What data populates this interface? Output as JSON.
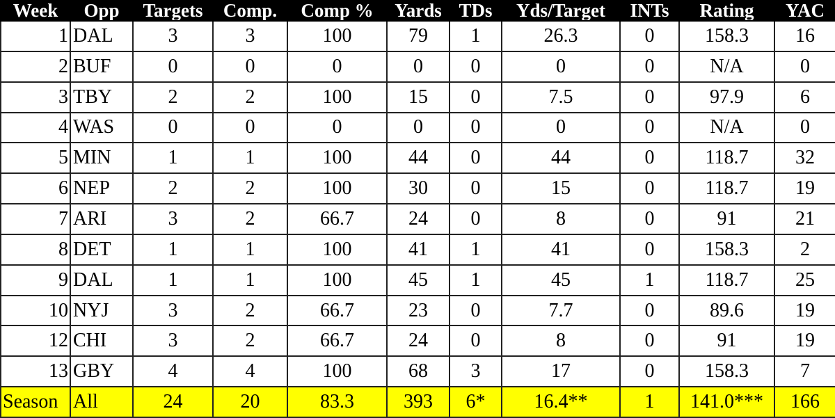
{
  "table": {
    "header": [
      "Week",
      "Opp",
      "Targets",
      "Comp.",
      "Comp %",
      "Yards",
      "TDs",
      "Yds/Target",
      "INTs",
      "Rating",
      "YAC"
    ],
    "rows": [
      [
        "1",
        "DAL",
        "3",
        "3",
        "100",
        "79",
        "1",
        "26.3",
        "0",
        "158.3",
        "16"
      ],
      [
        "2",
        "BUF",
        "0",
        "0",
        "0",
        "0",
        "0",
        "0",
        "0",
        "N/A",
        "0"
      ],
      [
        "3",
        "TBY",
        "2",
        "2",
        "100",
        "15",
        "0",
        "7.5",
        "0",
        "97.9",
        "6"
      ],
      [
        "4",
        "WAS",
        "0",
        "0",
        "0",
        "0",
        "0",
        "0",
        "0",
        "N/A",
        "0"
      ],
      [
        "5",
        "MIN",
        "1",
        "1",
        "100",
        "44",
        "0",
        "44",
        "0",
        "118.7",
        "32"
      ],
      [
        "6",
        "NEP",
        "2",
        "2",
        "100",
        "30",
        "0",
        "15",
        "0",
        "118.7",
        "19"
      ],
      [
        "7",
        "ARI",
        "3",
        "2",
        "66.7",
        "24",
        "0",
        "8",
        "0",
        "91",
        "21"
      ],
      [
        "8",
        "DET",
        "1",
        "1",
        "100",
        "41",
        "1",
        "41",
        "0",
        "158.3",
        "2"
      ],
      [
        "9",
        "DAL",
        "1",
        "1",
        "100",
        "45",
        "1",
        "45",
        "1",
        "118.7",
        "25"
      ],
      [
        "10",
        "NYJ",
        "3",
        "2",
        "66.7",
        "23",
        "0",
        "7.7",
        "0",
        "89.6",
        "19"
      ],
      [
        "12",
        "CHI",
        "3",
        "2",
        "66.7",
        "24",
        "0",
        "8",
        "0",
        "91",
        "19"
      ],
      [
        "13",
        "GBY",
        "4",
        "4",
        "100",
        "68",
        "3",
        "17",
        "0",
        "158.3",
        "7"
      ]
    ],
    "total": [
      "Season",
      "All",
      "24",
      "20",
      "83.3",
      "393",
      "6*",
      "16.4**",
      "1",
      "141.0***",
      "166"
    ]
  }
}
